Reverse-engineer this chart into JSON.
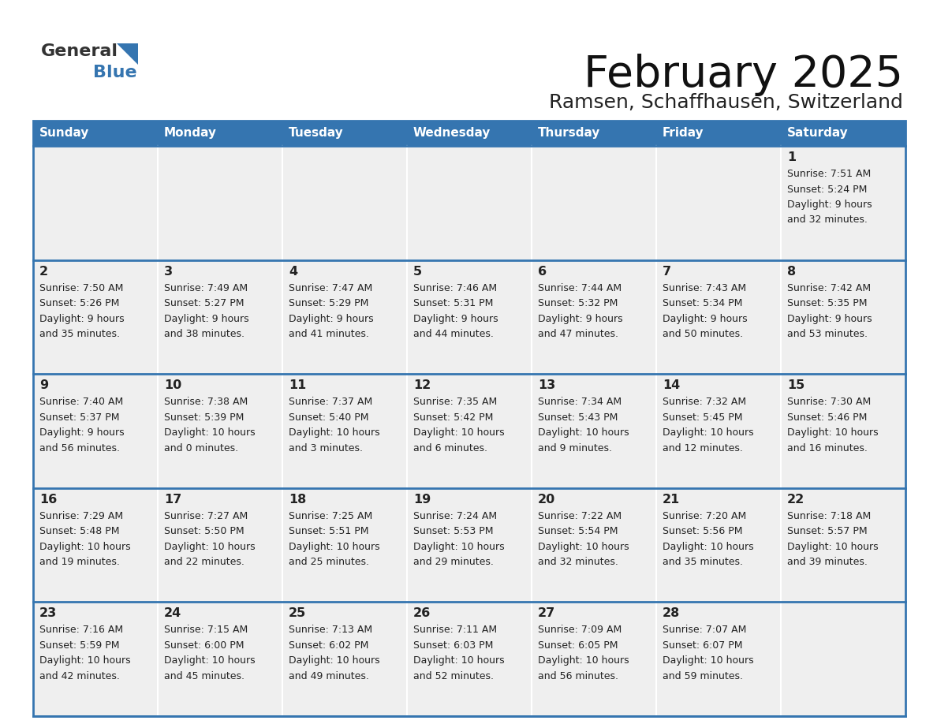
{
  "title": "February 2025",
  "subtitle": "Ramsen, Schaffhausen, Switzerland",
  "header_bg": "#3575b0",
  "header_text_color": "#ffffff",
  "cell_bg": "#efefef",
  "cell_text_color": "#222222",
  "border_color": "#3575b0",
  "days_of_week": [
    "Sunday",
    "Monday",
    "Tuesday",
    "Wednesday",
    "Thursday",
    "Friday",
    "Saturday"
  ],
  "calendar_data": [
    [
      {
        "day": null
      },
      {
        "day": null
      },
      {
        "day": null
      },
      {
        "day": null
      },
      {
        "day": null
      },
      {
        "day": null
      },
      {
        "day": 1,
        "sunrise": "7:51 AM",
        "sunset": "5:24 PM",
        "daylight_h": "9 hours",
        "daylight_m": "and 32 minutes."
      }
    ],
    [
      {
        "day": 2,
        "sunrise": "7:50 AM",
        "sunset": "5:26 PM",
        "daylight_h": "9 hours",
        "daylight_m": "and 35 minutes."
      },
      {
        "day": 3,
        "sunrise": "7:49 AM",
        "sunset": "5:27 PM",
        "daylight_h": "9 hours",
        "daylight_m": "and 38 minutes."
      },
      {
        "day": 4,
        "sunrise": "7:47 AM",
        "sunset": "5:29 PM",
        "daylight_h": "9 hours",
        "daylight_m": "and 41 minutes."
      },
      {
        "day": 5,
        "sunrise": "7:46 AM",
        "sunset": "5:31 PM",
        "daylight_h": "9 hours",
        "daylight_m": "and 44 minutes."
      },
      {
        "day": 6,
        "sunrise": "7:44 AM",
        "sunset": "5:32 PM",
        "daylight_h": "9 hours",
        "daylight_m": "and 47 minutes."
      },
      {
        "day": 7,
        "sunrise": "7:43 AM",
        "sunset": "5:34 PM",
        "daylight_h": "9 hours",
        "daylight_m": "and 50 minutes."
      },
      {
        "day": 8,
        "sunrise": "7:42 AM",
        "sunset": "5:35 PM",
        "daylight_h": "9 hours",
        "daylight_m": "and 53 minutes."
      }
    ],
    [
      {
        "day": 9,
        "sunrise": "7:40 AM",
        "sunset": "5:37 PM",
        "daylight_h": "9 hours",
        "daylight_m": "and 56 minutes."
      },
      {
        "day": 10,
        "sunrise": "7:38 AM",
        "sunset": "5:39 PM",
        "daylight_h": "10 hours",
        "daylight_m": "and 0 minutes."
      },
      {
        "day": 11,
        "sunrise": "7:37 AM",
        "sunset": "5:40 PM",
        "daylight_h": "10 hours",
        "daylight_m": "and 3 minutes."
      },
      {
        "day": 12,
        "sunrise": "7:35 AM",
        "sunset": "5:42 PM",
        "daylight_h": "10 hours",
        "daylight_m": "and 6 minutes."
      },
      {
        "day": 13,
        "sunrise": "7:34 AM",
        "sunset": "5:43 PM",
        "daylight_h": "10 hours",
        "daylight_m": "and 9 minutes."
      },
      {
        "day": 14,
        "sunrise": "7:32 AM",
        "sunset": "5:45 PM",
        "daylight_h": "10 hours",
        "daylight_m": "and 12 minutes."
      },
      {
        "day": 15,
        "sunrise": "7:30 AM",
        "sunset": "5:46 PM",
        "daylight_h": "10 hours",
        "daylight_m": "and 16 minutes."
      }
    ],
    [
      {
        "day": 16,
        "sunrise": "7:29 AM",
        "sunset": "5:48 PM",
        "daylight_h": "10 hours",
        "daylight_m": "and 19 minutes."
      },
      {
        "day": 17,
        "sunrise": "7:27 AM",
        "sunset": "5:50 PM",
        "daylight_h": "10 hours",
        "daylight_m": "and 22 minutes."
      },
      {
        "day": 18,
        "sunrise": "7:25 AM",
        "sunset": "5:51 PM",
        "daylight_h": "10 hours",
        "daylight_m": "and 25 minutes."
      },
      {
        "day": 19,
        "sunrise": "7:24 AM",
        "sunset": "5:53 PM",
        "daylight_h": "10 hours",
        "daylight_m": "and 29 minutes."
      },
      {
        "day": 20,
        "sunrise": "7:22 AM",
        "sunset": "5:54 PM",
        "daylight_h": "10 hours",
        "daylight_m": "and 32 minutes."
      },
      {
        "day": 21,
        "sunrise": "7:20 AM",
        "sunset": "5:56 PM",
        "daylight_h": "10 hours",
        "daylight_m": "and 35 minutes."
      },
      {
        "day": 22,
        "sunrise": "7:18 AM",
        "sunset": "5:57 PM",
        "daylight_h": "10 hours",
        "daylight_m": "and 39 minutes."
      }
    ],
    [
      {
        "day": 23,
        "sunrise": "7:16 AM",
        "sunset": "5:59 PM",
        "daylight_h": "10 hours",
        "daylight_m": "and 42 minutes."
      },
      {
        "day": 24,
        "sunrise": "7:15 AM",
        "sunset": "6:00 PM",
        "daylight_h": "10 hours",
        "daylight_m": "and 45 minutes."
      },
      {
        "day": 25,
        "sunrise": "7:13 AM",
        "sunset": "6:02 PM",
        "daylight_h": "10 hours",
        "daylight_m": "and 49 minutes."
      },
      {
        "day": 26,
        "sunrise": "7:11 AM",
        "sunset": "6:03 PM",
        "daylight_h": "10 hours",
        "daylight_m": "and 52 minutes."
      },
      {
        "day": 27,
        "sunrise": "7:09 AM",
        "sunset": "6:05 PM",
        "daylight_h": "10 hours",
        "daylight_m": "and 56 minutes."
      },
      {
        "day": 28,
        "sunrise": "7:07 AM",
        "sunset": "6:07 PM",
        "daylight_h": "10 hours",
        "daylight_m": "and 59 minutes."
      },
      {
        "day": null
      }
    ]
  ],
  "logo_general_color": "#333333",
  "logo_blue_color": "#3575b0",
  "logo_triangle_color": "#3575b0"
}
